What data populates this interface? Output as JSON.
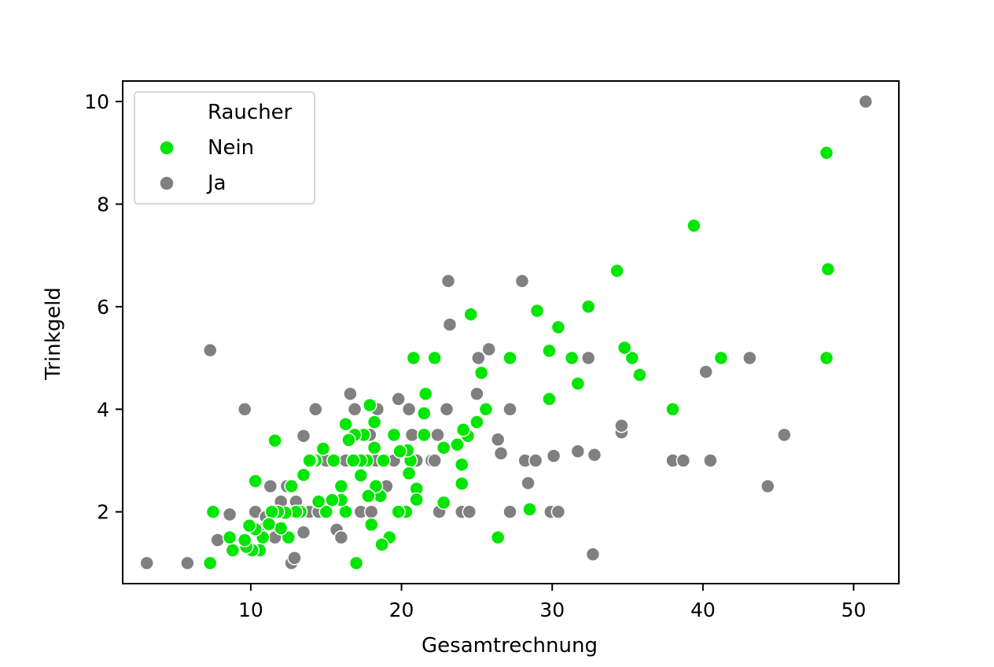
{
  "chart_data": {
    "type": "scatter",
    "xlabel": "Gesamtrechnung",
    "ylabel": "Trinkgeld",
    "xlim": [
      1.5,
      53
    ],
    "ylim": [
      0.6,
      10.4
    ],
    "xticks": [
      10,
      20,
      30,
      40,
      50
    ],
    "yticks": [
      2,
      4,
      6,
      8,
      10
    ],
    "grid": false,
    "legend": {
      "title": "Raucher",
      "position": "top-left",
      "entries": [
        {
          "label": "Nein",
          "color": "#00e600"
        },
        {
          "label": "Ja",
          "color": "#808080"
        }
      ]
    },
    "series": [
      {
        "name": "Ja",
        "color": "#808080",
        "points": [
          [
            50.8,
            10.0
          ],
          [
            3.1,
            1.0
          ],
          [
            5.8,
            1.0
          ],
          [
            7.3,
            5.15
          ],
          [
            7.8,
            1.45
          ],
          [
            8.6,
            1.95
          ],
          [
            9.6,
            4.0
          ],
          [
            10.3,
            2.0
          ],
          [
            10.6,
            1.65
          ],
          [
            11.0,
            1.9
          ],
          [
            11.3,
            2.5
          ],
          [
            11.6,
            1.5
          ],
          [
            12.0,
            2.2
          ],
          [
            12.4,
            2.5
          ],
          [
            12.7,
            1.0
          ],
          [
            12.9,
            1.1
          ],
          [
            13.0,
            2.2
          ],
          [
            13.3,
            2.0
          ],
          [
            13.5,
            3.48
          ],
          [
            13.5,
            1.6
          ],
          [
            13.9,
            2.0
          ],
          [
            14.3,
            4.0
          ],
          [
            14.5,
            2.0
          ],
          [
            15.0,
            3.0
          ],
          [
            15.4,
            2.25
          ],
          [
            15.7,
            1.65
          ],
          [
            16.0,
            1.5
          ],
          [
            16.3,
            3.0
          ],
          [
            16.6,
            4.3
          ],
          [
            16.9,
            4.0
          ],
          [
            17.3,
            2.0
          ],
          [
            17.6,
            3.0
          ],
          [
            17.9,
            3.5
          ],
          [
            18.0,
            2.0
          ],
          [
            18.3,
            3.0
          ],
          [
            18.4,
            4.0
          ],
          [
            19.0,
            2.5
          ],
          [
            19.5,
            3.0
          ],
          [
            19.8,
            4.2
          ],
          [
            20.1,
            2.0
          ],
          [
            20.5,
            4.0
          ],
          [
            20.7,
            3.5
          ],
          [
            21.0,
            3.0
          ],
          [
            21.6,
            3.5
          ],
          [
            22.0,
            3.0
          ],
          [
            22.2,
            3.0
          ],
          [
            22.4,
            3.5
          ],
          [
            22.5,
            2.0
          ],
          [
            23.0,
            4.0
          ],
          [
            23.1,
            6.5
          ],
          [
            23.2,
            5.65
          ],
          [
            24.0,
            2.0
          ],
          [
            24.5,
            2.0
          ],
          [
            25.0,
            4.3
          ],
          [
            25.1,
            5.0
          ],
          [
            25.8,
            5.17
          ],
          [
            26.4,
            3.41
          ],
          [
            26.6,
            3.14
          ],
          [
            27.2,
            2.0
          ],
          [
            27.2,
            4.0
          ],
          [
            28.0,
            6.5
          ],
          [
            28.2,
            3.0
          ],
          [
            28.4,
            2.56
          ],
          [
            28.9,
            3.0
          ],
          [
            29.9,
            2.0
          ],
          [
            30.1,
            3.09
          ],
          [
            30.4,
            2.0
          ],
          [
            31.7,
            3.18
          ],
          [
            32.4,
            5.0
          ],
          [
            32.7,
            1.17
          ],
          [
            32.8,
            3.11
          ],
          [
            34.6,
            3.55
          ],
          [
            34.6,
            3.68
          ],
          [
            38.0,
            3.0
          ],
          [
            38.7,
            3.0
          ],
          [
            40.2,
            4.73
          ],
          [
            40.5,
            3.0
          ],
          [
            43.1,
            5.0
          ],
          [
            44.3,
            2.5
          ],
          [
            45.4,
            3.5
          ]
        ]
      },
      {
        "name": "Nein",
        "color": "#00e600",
        "points": [
          [
            48.2,
            9.0
          ],
          [
            48.3,
            6.73
          ],
          [
            48.2,
            5.0
          ],
          [
            39.4,
            7.58
          ],
          [
            41.2,
            5.0
          ],
          [
            38.0,
            4.0
          ],
          [
            35.8,
            4.67
          ],
          [
            35.3,
            5.0
          ],
          [
            34.8,
            5.2
          ],
          [
            34.3,
            6.7
          ],
          [
            32.4,
            6.0
          ],
          [
            31.7,
            4.5
          ],
          [
            31.3,
            5.0
          ],
          [
            30.4,
            5.6
          ],
          [
            29.8,
            5.14
          ],
          [
            29.8,
            4.2
          ],
          [
            29.0,
            5.92
          ],
          [
            28.5,
            2.05
          ],
          [
            27.2,
            5.0
          ],
          [
            26.4,
            1.5
          ],
          [
            25.6,
            4.0
          ],
          [
            25.3,
            4.71
          ],
          [
            25.0,
            3.75
          ],
          [
            24.6,
            5.85
          ],
          [
            24.4,
            3.48
          ],
          [
            24.1,
            3.6
          ],
          [
            24.0,
            2.55
          ],
          [
            24.0,
            2.92
          ],
          [
            23.7,
            3.31
          ],
          [
            22.8,
            3.25
          ],
          [
            22.8,
            2.18
          ],
          [
            22.2,
            5.0
          ],
          [
            21.5,
            3.5
          ],
          [
            21.6,
            4.3
          ],
          [
            21.5,
            3.92
          ],
          [
            21.0,
            2.45
          ],
          [
            21.0,
            2.24
          ],
          [
            20.8,
            5.0
          ],
          [
            20.6,
            3.0
          ],
          [
            20.5,
            2.75
          ],
          [
            20.4,
            3.2
          ],
          [
            20.3,
            2.0
          ],
          [
            19.9,
            3.18
          ],
          [
            19.8,
            2.0
          ],
          [
            19.5,
            3.5
          ],
          [
            19.2,
            1.5
          ],
          [
            18.8,
            3.0
          ],
          [
            18.7,
            1.36
          ],
          [
            18.6,
            2.31
          ],
          [
            18.3,
            2.5
          ],
          [
            18.2,
            3.75
          ],
          [
            18.2,
            3.25
          ],
          [
            18.0,
            1.75
          ],
          [
            17.9,
            4.08
          ],
          [
            17.8,
            2.31
          ],
          [
            17.7,
            3.0
          ],
          [
            17.5,
            3.5
          ],
          [
            17.3,
            2.71
          ],
          [
            17.3,
            3.0
          ],
          [
            17.0,
            1.0
          ],
          [
            16.9,
            3.5
          ],
          [
            16.8,
            3.0
          ],
          [
            16.5,
            3.4
          ],
          [
            16.3,
            3.71
          ],
          [
            16.3,
            2.0
          ],
          [
            16.0,
            2.5
          ],
          [
            16.0,
            2.23
          ],
          [
            15.5,
            3.0
          ],
          [
            15.4,
            2.23
          ],
          [
            15.0,
            2.0
          ],
          [
            14.8,
            3.23
          ],
          [
            14.5,
            2.2
          ],
          [
            14.3,
            3.0
          ],
          [
            14.0,
            3.0
          ],
          [
            13.9,
            3.0
          ],
          [
            13.5,
            2.72
          ],
          [
            13.3,
            2.0
          ],
          [
            13.0,
            2.0
          ],
          [
            12.7,
            2.5
          ],
          [
            12.5,
            1.5
          ],
          [
            12.3,
            1.98
          ],
          [
            12.0,
            1.68
          ],
          [
            11.8,
            2.0
          ],
          [
            11.6,
            3.39
          ],
          [
            11.4,
            2.0
          ],
          [
            11.2,
            1.76
          ],
          [
            10.8,
            1.5
          ],
          [
            10.6,
            1.25
          ],
          [
            10.3,
            1.66
          ],
          [
            10.3,
            2.6
          ],
          [
            10.1,
            1.25
          ],
          [
            9.9,
            1.73
          ],
          [
            9.7,
            1.32
          ],
          [
            9.6,
            1.45
          ],
          [
            8.8,
            1.25
          ],
          [
            8.6,
            1.5
          ],
          [
            7.5,
            2.0
          ],
          [
            7.3,
            1.0
          ]
        ]
      }
    ]
  }
}
